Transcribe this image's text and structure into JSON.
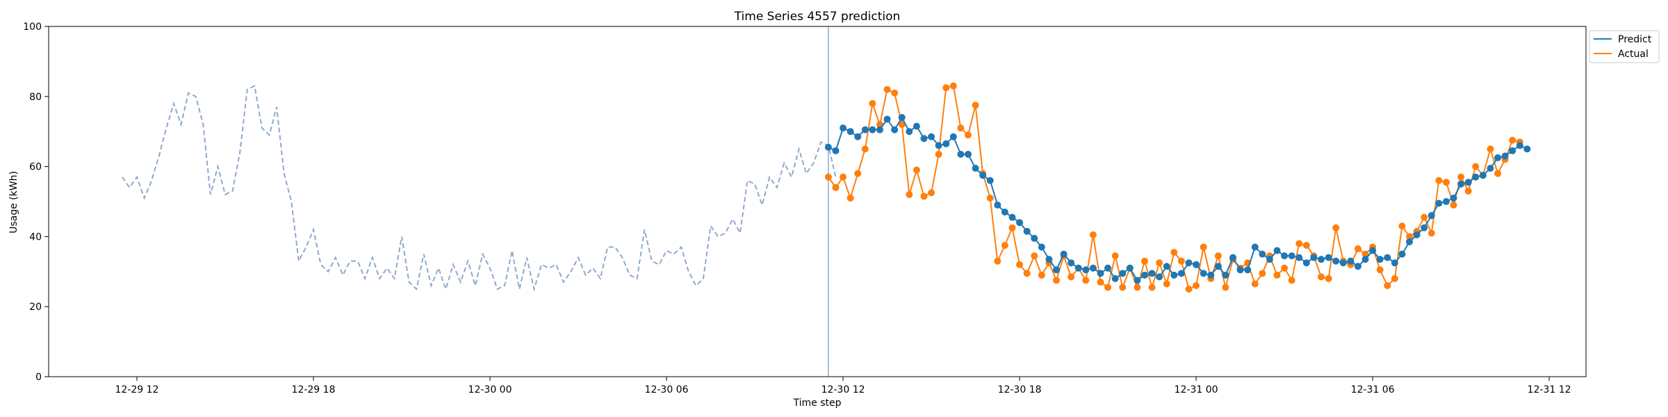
{
  "chart_data": {
    "type": "line",
    "title": "Time Series 4557 prediction",
    "xlabel": "Time step",
    "ylabel": "Usage (kWh)",
    "ylim": [
      0,
      100
    ],
    "yticks": [
      0,
      20,
      40,
      60,
      80,
      100
    ],
    "xlim": [
      "2024-12-29T09:00",
      "2024-12-31T13:15"
    ],
    "xticks": [
      {
        "at": "2024-12-29T12:00",
        "label": "12-29 12"
      },
      {
        "at": "2024-12-29T18:00",
        "label": "12-29 18"
      },
      {
        "at": "2024-12-30T00:00",
        "label": "12-30 00"
      },
      {
        "at": "2024-12-30T06:00",
        "label": "12-30 06"
      },
      {
        "at": "2024-12-30T12:00",
        "label": "12-30 12"
      },
      {
        "at": "2024-12-30T18:00",
        "label": "12-30 18"
      },
      {
        "at": "2024-12-31T00:00",
        "label": "12-31 00"
      },
      {
        "at": "2024-12-31T06:00",
        "label": "12-31 06"
      },
      {
        "at": "2024-12-31T12:00",
        "label": "12-31 12"
      }
    ],
    "forecast_start": "2024-12-30T11:30",
    "legend_position": "upper right, outside plot",
    "grid": false,
    "colors": {
      "history": "#8fa9cc",
      "predict": "#1f77b4",
      "actual": "#ff7f0e",
      "divider": "#8fa9cc"
    },
    "history": {
      "start": "2024-12-29T11:30",
      "interval_minutes": 15,
      "values": [
        57,
        54,
        57,
        51,
        56,
        63,
        71,
        78,
        72,
        81,
        80,
        72,
        52,
        60,
        52,
        53,
        64,
        82,
        83,
        71,
        69,
        77,
        58,
        50,
        33,
        37,
        42,
        32,
        30,
        34,
        29,
        33,
        33,
        28,
        34,
        28,
        31,
        28,
        40,
        27,
        25,
        35,
        26,
        31,
        25,
        32,
        27,
        33,
        26,
        35,
        31,
        25,
        26,
        36,
        25,
        34,
        25,
        32,
        31,
        32,
        27,
        30,
        34,
        29,
        31,
        28,
        37,
        37,
        34,
        29,
        28,
        42,
        33,
        32,
        36,
        35,
        37,
        30,
        26,
        28,
        43,
        40,
        41,
        45,
        41,
        56,
        55,
        49,
        57,
        54,
        61,
        57,
        65,
        58,
        61,
        67,
        66,
        57
      ]
    },
    "series": [
      {
        "name": "Predict",
        "start": "2024-12-30T11:30",
        "interval_minutes": 15,
        "values": [
          65.5,
          64.5,
          71,
          70,
          68.5,
          70.5,
          70.5,
          70.5,
          73.5,
          70.5,
          74,
          70,
          71.5,
          68,
          68.5,
          66,
          66.5,
          68.5,
          63.5,
          63.5,
          59.5,
          57.5,
          56,
          49,
          47,
          45.5,
          44,
          41.5,
          39.5,
          37,
          33.5,
          30.5,
          35,
          32.5,
          31,
          30.5,
          31,
          29.5,
          31,
          28,
          29.5,
          31,
          27.5,
          29,
          29.5,
          28.5,
          31.5,
          29,
          29.5,
          32.5,
          32,
          29.5,
          29,
          31.5,
          29,
          34,
          30.5,
          30.5,
          37,
          35,
          33.5,
          36,
          34.5,
          34.5,
          34,
          32.5,
          34,
          33.5,
          34,
          33,
          32.5,
          33,
          31.5,
          33.5,
          36,
          33.5,
          34,
          32.5,
          35,
          38.5,
          40.5,
          42.5,
          46,
          49.5,
          50,
          51,
          55,
          55.5,
          57,
          57.5,
          59.5,
          62.5,
          63,
          64.5,
          66,
          65
        ]
      },
      {
        "name": "Actual",
        "start": "2024-12-30T11:30",
        "interval_minutes": 15,
        "values": [
          57,
          54,
          57,
          51,
          58,
          65,
          78,
          72,
          82,
          81,
          72,
          52,
          59,
          51.5,
          52.5,
          63.5,
          82.5,
          83,
          71,
          69,
          77.5,
          58,
          51,
          33,
          37.5,
          42.5,
          32,
          29.5,
          34.5,
          29,
          32.5,
          27.5,
          34.5,
          28.5,
          31,
          27.5,
          40.5,
          27,
          25.5,
          34.5,
          25.5,
          31,
          25.5,
          33,
          25.5,
          32.5,
          26.5,
          35.5,
          33,
          25,
          26,
          37,
          28,
          34.5,
          25.5,
          33.5,
          31,
          32.5,
          26.5,
          29.5,
          34.5,
          29,
          31,
          27.5,
          38,
          37.5,
          34.5,
          28.5,
          28,
          42.5,
          33,
          32,
          36.5,
          35,
          37,
          30.5,
          26,
          28,
          43,
          40,
          41.5,
          45.5,
          41,
          56,
          55.5,
          49,
          57,
          53,
          60,
          57.5,
          65,
          58,
          62,
          67.5,
          67
        ]
      }
    ]
  }
}
